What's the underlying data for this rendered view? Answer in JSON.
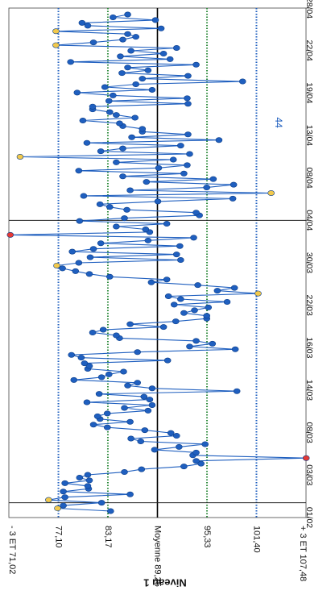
{
  "chart_data": {
    "type": "line",
    "orientation": "rotated-90",
    "ylabel": "Niveau 1",
    "reference_lines": [
      {
        "label": "+ 3 ET 107,48",
        "value": 107.48,
        "style": "none"
      },
      {
        "label": "101,40",
        "value": 101.4,
        "style": "dotted-blue"
      },
      {
        "label": "95,33",
        "value": 95.33,
        "style": "dotted-green"
      },
      {
        "label": "Moyenne 89,25",
        "value": 89.25,
        "style": "solid-black"
      },
      {
        "label": "83,17",
        "value": 83.17,
        "style": "dotted-green"
      },
      {
        "label": "77,10",
        "value": 77.1,
        "style": "dotted-blue"
      },
      {
        "label": "- 3 ET 71,02",
        "value": 71.02,
        "style": "none"
      }
    ],
    "date_ticks": [
      "01/02",
      "03/03",
      "08/03",
      "14/03",
      "16/03",
      "22/03",
      "30/03",
      "04/04",
      "08/04",
      "13/04",
      "19/04",
      "22/04",
      "28/04"
    ],
    "annotations": [
      {
        "text": "44",
        "date_index": 9.3
      }
    ],
    "vertical_lines": [
      0.35,
      7.0
    ],
    "ylim": [
      71.02,
      107.48
    ],
    "colors": {
      "series": "#1f5fbf",
      "point": "#1f5fbf",
      "outlier": "#f2c94c",
      "violation": "#e53935",
      "mean": "#000000",
      "sd1": "#2e8b3c",
      "sd2": "#1f5fbf"
    },
    "series": [
      {
        "name": "",
        "values": [
          83.5,
          77.0,
          77.7,
          82.4,
          75.9,
          77.9,
          85.9,
          77.7,
          80.8,
          80.7,
          77.9,
          80.9,
          79.7,
          80.7,
          85.2,
          87.3,
          92.5,
          94.6,
          94.0,
          107.5,
          93.6,
          94.0,
          88.9,
          91.9,
          95.1,
          87.2,
          86.0,
          91.6,
          90.9,
          87.7,
          83.1,
          81.4,
          85.9,
          82.2,
          81.9,
          83.1,
          88.1,
          85.2,
          88.6,
          80.6,
          88.3,
          87.6,
          82.1,
          99.0,
          88.6,
          85.6,
          86.8,
          79.0,
          82.4,
          83.3,
          85.1,
          80.7,
          80.9,
          80.3,
          90.5,
          79.9,
          78.7,
          86.8,
          98.8,
          93.2,
          96.0,
          94.0,
          84.6,
          84.2,
          81.3,
          82.6,
          90.0,
          85.9,
          91.5,
          95.3,
          95.3,
          92.5,
          93.8,
          95.5,
          91.3,
          97.8,
          92.1,
          90.6,
          101.6,
          96.6,
          98.7,
          94.2,
          88.5,
          90.4,
          83.4,
          80.9,
          79.2,
          77.6,
          76.9,
          79.6,
          92.1,
          81.0,
          91.6,
          78.8,
          81.4,
          92.0,
          82.3,
          88.1,
          93.7,
          71.2,
          88.3,
          87.8,
          84.2,
          90.4,
          79.7,
          85.2,
          94.4,
          94.0,
          85.5,
          83.4,
          82.2,
          89.3,
          98.5,
          80.2,
          103.2,
          85.9,
          95.3,
          98.6,
          87.9,
          96.1,
          85.0,
          92.5,
          79.6,
          89.4,
          92.9,
          84.2,
          91.2,
          72.4,
          93.2,
          82.3,
          85.0,
          92.1,
          80.6,
          96.8,
          86.1,
          93.0,
          87.4,
          87.4,
          85.0,
          84.6,
          80.1,
          86.5,
          84.2,
          83.4,
          81.3,
          81.3,
          93.0,
          83.3,
          92.9,
          83.8,
          79.4,
          88.6,
          82.8,
          86.6,
          99.7,
          87.4,
          93.0,
          84.9,
          88.1,
          85.6,
          94.0,
          78.6,
          90.8,
          84.7,
          90.0,
          86.0,
          91.6,
          76.8,
          81.4,
          85.0,
          86.6,
          85.6,
          76.8,
          89.7,
          80.7,
          80.0,
          89.0,
          83.8,
          85.6
        ]
      }
    ]
  }
}
